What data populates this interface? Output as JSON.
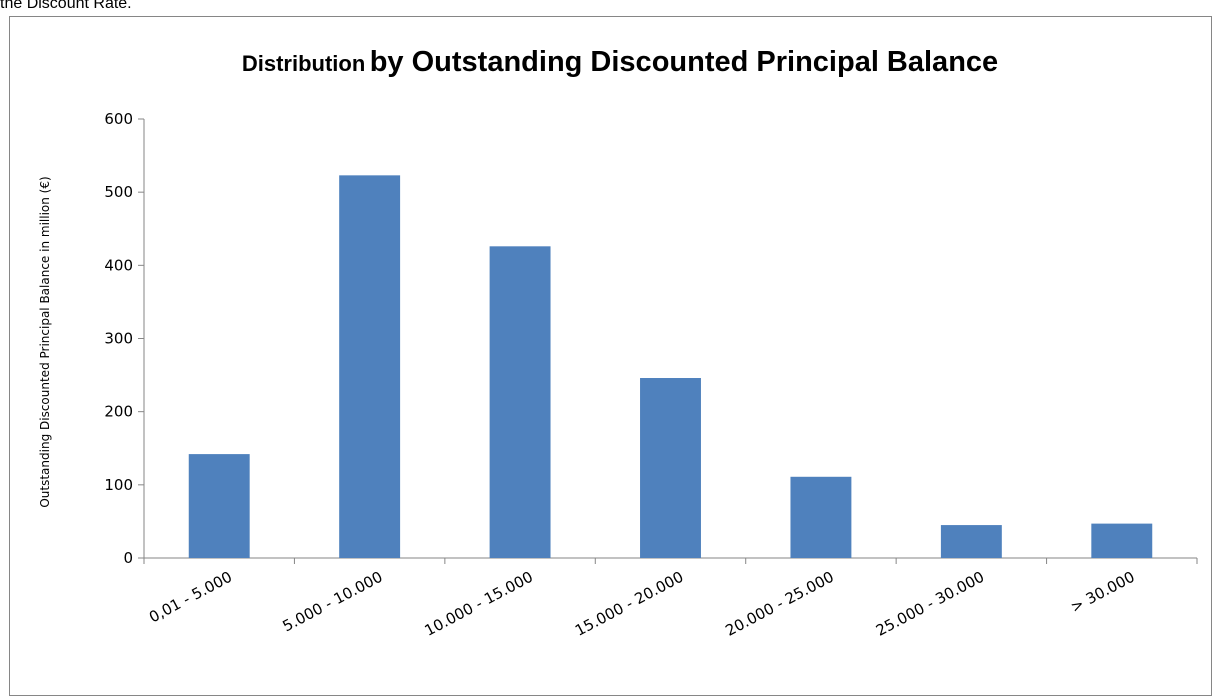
{
  "caption": "the Discount Rate.",
  "colors": {
    "bar": "#4f81bd",
    "axis": "#868686",
    "text": "#000000"
  },
  "chart_data": {
    "type": "bar",
    "title_part1": "Distribution",
    "title_part2": "by Outstanding Discounted Principal Balance",
    "xlabel": "",
    "ylabel": "Outstanding Discounted Principal Balance in million (€)",
    "categories": [
      "0,01 - 5.000",
      "5.000 - 10.000",
      "10.000 - 15.000",
      "15.000 - 20.000",
      "20.000 - 25.000",
      "25.000 - 30.000",
      "> 30.000"
    ],
    "values": [
      142,
      523,
      426,
      246,
      111,
      45,
      47
    ],
    "ylim": [
      0,
      600
    ],
    "yticks": [
      0,
      100,
      200,
      300,
      400,
      500,
      600
    ],
    "grid": false,
    "legend": "none"
  }
}
